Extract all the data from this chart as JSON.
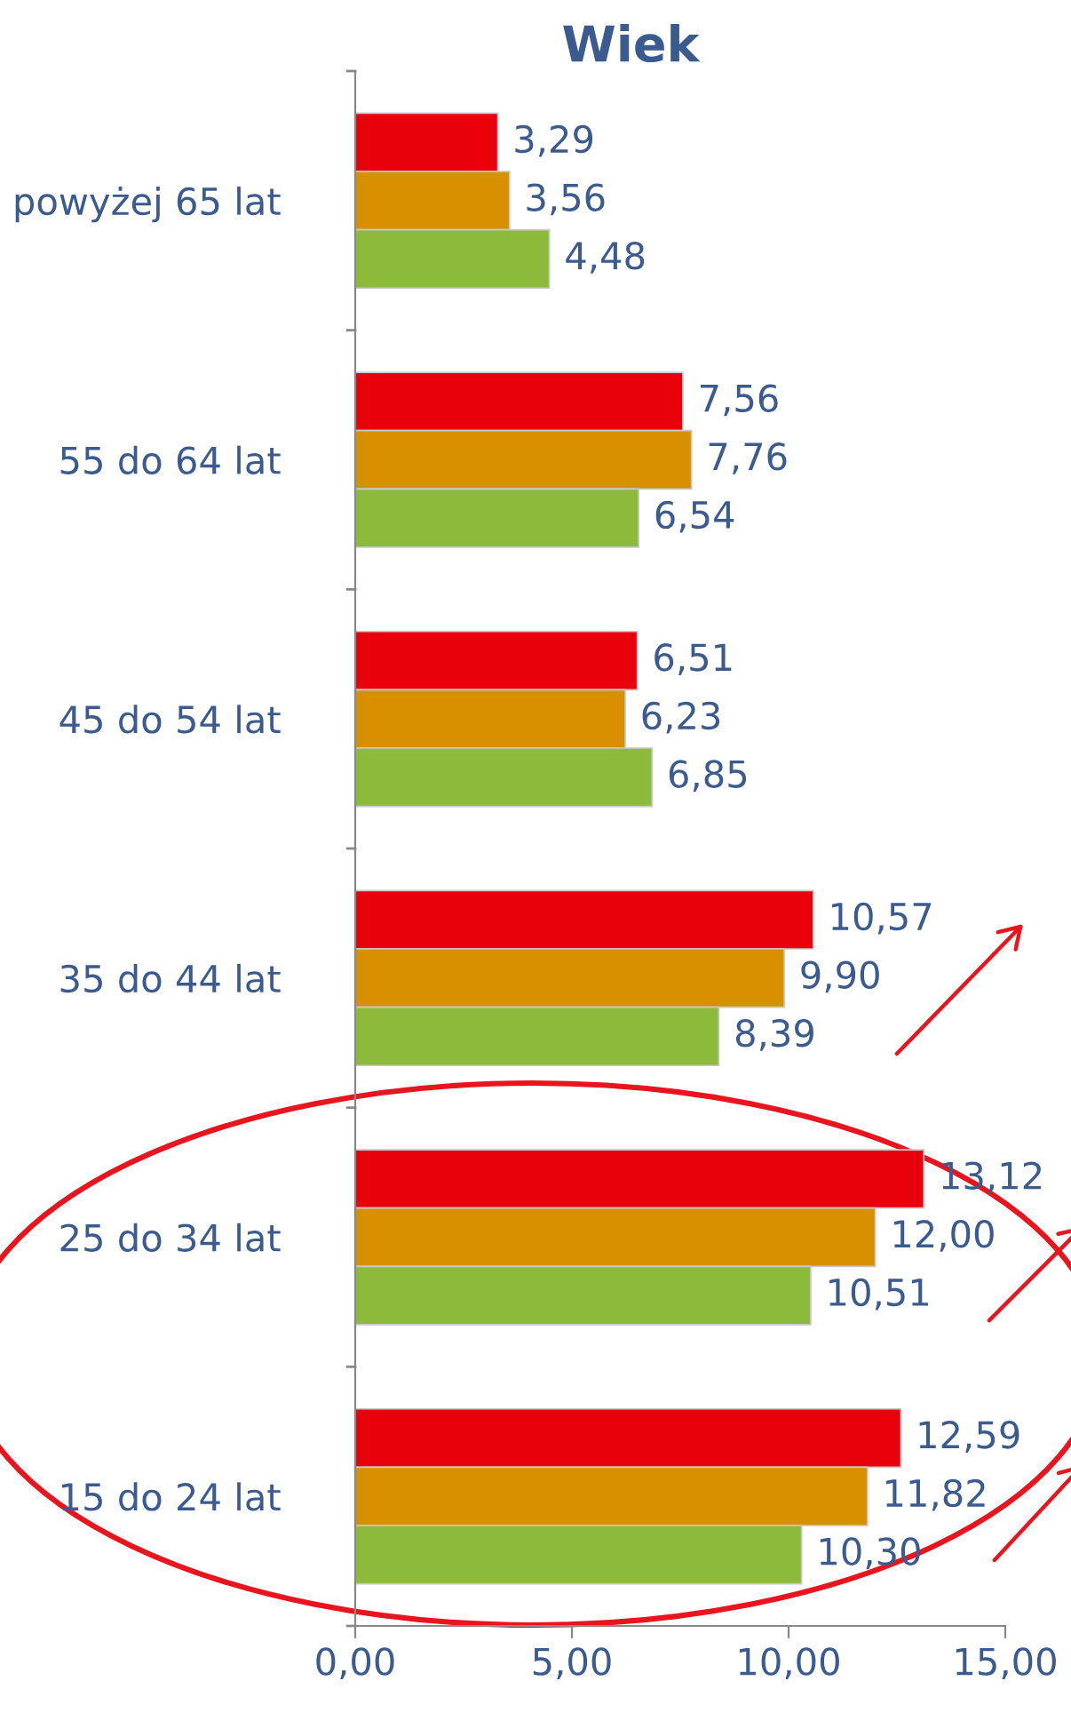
{
  "chart_data": {
    "type": "bar",
    "orientation": "horizontal",
    "title": "Wiek",
    "categories": [
      "powyżej 65 lat",
      "55 do 64 lat",
      "45 do 54 lat",
      "35 do 44 lat",
      "25 do 34 lat",
      "15 do 24 lat"
    ],
    "series": [
      {
        "color": "#e8000b",
        "values": [
          3.29,
          7.56,
          6.51,
          10.57,
          13.12,
          12.59
        ],
        "value_labels": [
          "3,29",
          "7,56",
          "6,51",
          "10,57",
          "13,12",
          "12,59"
        ]
      },
      {
        "color": "#d99000",
        "values": [
          3.56,
          7.76,
          6.23,
          9.9,
          12.0,
          11.82
        ],
        "value_labels": [
          "3,56",
          "7,76",
          "6,23",
          "9,90",
          "12,00",
          "11,82"
        ]
      },
      {
        "color": "#8cbb3c",
        "values": [
          4.48,
          6.54,
          6.85,
          8.39,
          10.51,
          10.3
        ],
        "value_labels": [
          "4,48",
          "6,54",
          "6,85",
          "8,39",
          "10,51",
          "10,30"
        ]
      }
    ],
    "xlim": [
      0,
      15
    ],
    "xticks": [
      {
        "value": 0,
        "label": "0,00"
      },
      {
        "value": 5,
        "label": "5,00"
      },
      {
        "value": 10,
        "label": "10,00"
      },
      {
        "value": 15,
        "label": "15,00"
      }
    ],
    "grid": false,
    "legend": false
  }
}
